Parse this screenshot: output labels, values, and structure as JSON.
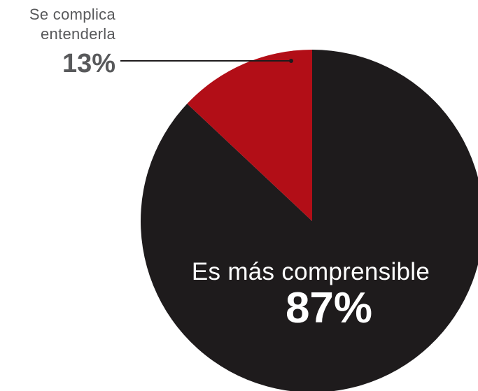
{
  "chart_data": {
    "type": "pie",
    "title": "",
    "categories": [
      "Es más comprensible",
      "Se complica entenderla"
    ],
    "values": [
      87,
      13
    ],
    "unit": "%",
    "slices": [
      {
        "label_lines": [
          "Es más comprensible"
        ],
        "value": 87,
        "value_label": "87%",
        "color": "#1e1b1c"
      },
      {
        "label_lines": [
          "Se complica",
          "entenderla"
        ],
        "value": 13,
        "value_label": "13%",
        "color": "#b20e17"
      }
    ],
    "colors": {
      "label_text_light": "#ffffff",
      "label_text_muted": "#58595b",
      "leader_line": "#1e1b1c"
    }
  }
}
